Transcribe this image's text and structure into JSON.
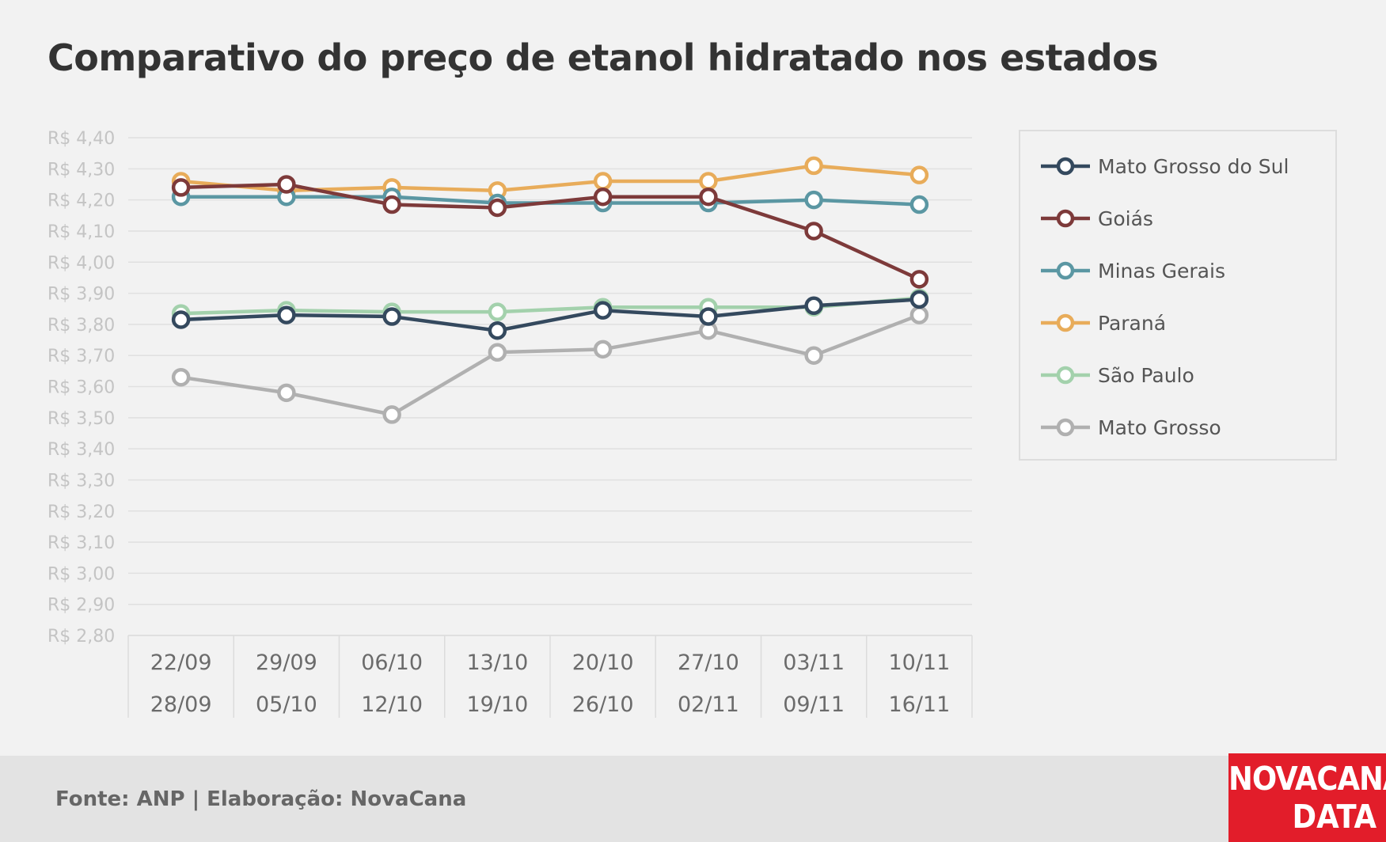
{
  "title": "Comparativo do preço de etanol hidratado nos estados",
  "source": "Fonte: ANP | Elaboração: NovaCana",
  "logo": {
    "line1": "NOVACANA",
    "line2": "DATA"
  },
  "chart_data": {
    "type": "line",
    "title": "Comparativo do preço de etanol hidratado nos estados",
    "xlabel": "",
    "ylabel": "",
    "ylim": [
      2.8,
      4.4
    ],
    "yticks": [
      "R$ 4,40",
      "R$ 4,30",
      "R$ 4,20",
      "R$ 4,10",
      "R$ 4,00",
      "R$ 3,90",
      "R$ 3,80",
      "R$ 3,70",
      "R$ 3,60",
      "R$ 3,50",
      "R$ 3,40",
      "R$ 3,30",
      "R$ 3,20",
      "R$ 3,10",
      "R$ 3,00",
      "R$ 2,90",
      "R$ 2,80"
    ],
    "grid": true,
    "legend_position": "right",
    "categories": [
      {
        "start": "22/09",
        "end": "28/09"
      },
      {
        "start": "29/09",
        "end": "05/10"
      },
      {
        "start": "06/10",
        "end": "12/10"
      },
      {
        "start": "13/10",
        "end": "19/10"
      },
      {
        "start": "20/10",
        "end": "26/10"
      },
      {
        "start": "27/10",
        "end": "02/11"
      },
      {
        "start": "03/11",
        "end": "09/11"
      },
      {
        "start": "10/11",
        "end": "16/11"
      }
    ],
    "series": [
      {
        "name": "Paraná",
        "color": "#e8ac5a",
        "values": [
          4.26,
          4.23,
          4.24,
          4.23,
          4.26,
          4.26,
          4.31,
          4.28
        ]
      },
      {
        "name": "Minas Gerais",
        "color": "#5b97a3",
        "values": [
          4.21,
          4.21,
          4.21,
          4.19,
          4.19,
          4.19,
          4.2,
          4.185
        ]
      },
      {
        "name": "São Paulo",
        "color": "#a3d1ac",
        "values": [
          3.835,
          3.845,
          3.84,
          3.84,
          3.855,
          3.855,
          3.855,
          3.885
        ]
      },
      {
        "name": "Mato Grosso",
        "color": "#b0b0b0",
        "values": [
          3.63,
          3.58,
          3.51,
          3.71,
          3.72,
          3.78,
          3.7,
          3.83
        ]
      },
      {
        "name": "Mato Grosso do Sul",
        "color": "#34495e",
        "values": [
          3.815,
          3.83,
          3.825,
          3.78,
          3.845,
          3.825,
          3.86,
          3.88
        ]
      },
      {
        "name": "Goiás",
        "color": "#7d3a3a",
        "values": [
          4.24,
          4.25,
          4.185,
          4.175,
          4.21,
          4.21,
          4.1,
          3.945
        ]
      }
    ],
    "legend_order": [
      "Mato Grosso do Sul",
      "Goiás",
      "Minas Gerais",
      "Paraná",
      "São Paulo",
      "Mato Grosso"
    ]
  }
}
